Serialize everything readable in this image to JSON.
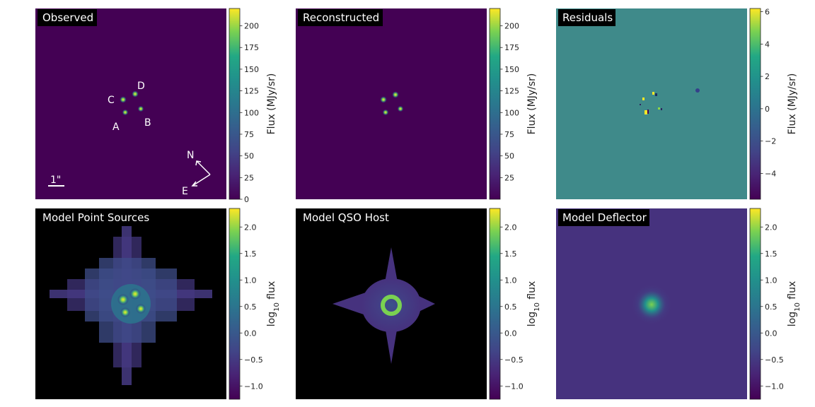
{
  "chart_data": [
    {
      "type": "heatmap",
      "id": "observed",
      "title": "Observed",
      "colorbar_label": "Flux (MJy/sr)",
      "colorbar_range": [
        0,
        220
      ],
      "colorbar_ticks": [
        0,
        25,
        50,
        75,
        100,
        125,
        150,
        175,
        200
      ],
      "image_labels": [
        "A",
        "B",
        "C",
        "D"
      ],
      "compass": {
        "north": "N",
        "east": "E"
      },
      "scale_bar": "1\""
    },
    {
      "type": "heatmap",
      "id": "reconstructed",
      "title": "Reconstructed",
      "colorbar_label": "Flux (MJy/sr)",
      "colorbar_range": [
        0,
        220
      ],
      "colorbar_ticks": [
        25,
        50,
        75,
        100,
        125,
        150,
        175,
        200
      ]
    },
    {
      "type": "heatmap",
      "id": "residuals",
      "title": "Residuals",
      "colorbar_label": "Flux (MJy/sr)",
      "colorbar_range": [
        -5.6,
        6.2
      ],
      "colorbar_ticks": [
        -4,
        -2,
        0,
        2,
        4,
        6
      ]
    },
    {
      "type": "heatmap",
      "id": "model-point-sources",
      "title": "Model Point Sources",
      "colorbar_label": "log10 flux",
      "colorbar_range": [
        -1.25,
        2.35
      ],
      "colorbar_ticks": [
        -1.0,
        -0.5,
        0.0,
        0.5,
        1.0,
        1.5,
        2.0
      ]
    },
    {
      "type": "heatmap",
      "id": "model-qso-host",
      "title": "Model QSO Host",
      "colorbar_label": "log10 flux",
      "colorbar_range": [
        -1.25,
        2.35
      ],
      "colorbar_ticks": [
        -1.0,
        -0.5,
        0.0,
        0.5,
        1.0,
        1.5,
        2.0
      ]
    },
    {
      "type": "heatmap",
      "id": "model-deflector",
      "title": "Model Deflector",
      "colorbar_label": "log10 flux",
      "colorbar_range": [
        -1.25,
        2.35
      ],
      "colorbar_ticks": [
        -1.0,
        -0.5,
        0.0,
        0.5,
        1.0,
        1.5,
        2.0
      ]
    }
  ],
  "colors": {
    "viridis_dark": "#440154",
    "panel_bg_observed": "#450559",
    "residual_bg": "#3f8a8a",
    "black": "#000000",
    "bright": "#c8e020"
  }
}
